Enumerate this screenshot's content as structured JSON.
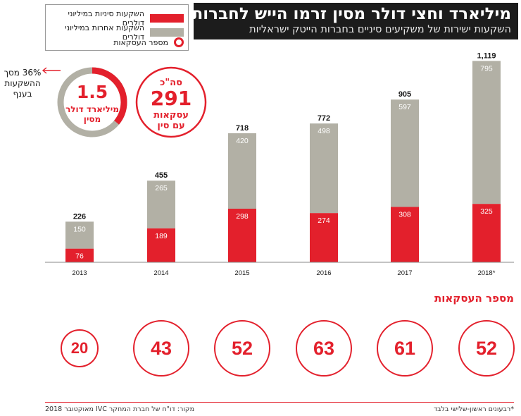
{
  "header": {
    "title": "מיליארד וחצי דולר מסין זרמו הייש לחברות",
    "subtitle": "השקעות ישירות של משקיעים סיניים בחברות הייטק ישראליות"
  },
  "legend": {
    "chinese": "השקעות סיניות במיליוני דולרים",
    "other": "השקעות אחרות במיליוני דולרים",
    "deals": "מספר העסקאות"
  },
  "summary": {
    "total_amount": "1.5",
    "total_amount_unit_line1": "מיליארד דולר",
    "total_amount_unit_line2": "מסין",
    "share_note_line1": "36% מסך",
    "share_note_line2": "ההשקעות",
    "share_note_line3": "בענף",
    "share_fraction": 0.36,
    "deals_prefix": "סה\"כ",
    "deals_total": "291",
    "deals_line1": "עסקאות",
    "deals_line2": "עם סין"
  },
  "colors": {
    "chinese": "#e3202c",
    "other": "#b2b0a5",
    "accent": "#e3202c",
    "title_bg": "#1c1c1c"
  },
  "chart_data": {
    "type": "bar",
    "stacked": true,
    "categories": [
      "2013",
      "2014",
      "2015",
      "2016",
      "2017",
      "2018*"
    ],
    "series": [
      {
        "name": "השקעות סיניות במיליוני דולרים",
        "values": [
          76,
          189,
          298,
          274,
          308,
          325
        ]
      },
      {
        "name": "השקעות אחרות במיליוני דולרים",
        "values": [
          150,
          265,
          420,
          498,
          597,
          795
        ]
      }
    ],
    "totals": [
      "226",
      "455",
      "718",
      "772",
      "905",
      "1,119"
    ],
    "deals": [
      20,
      43,
      52,
      63,
      61,
      52
    ],
    "ylim": [
      0,
      1119
    ]
  },
  "deals_section": {
    "title": "מספר העסקאות"
  },
  "footer": {
    "note": "*רבעונים ראשון-שלישי בלבד",
    "source": "מקור: דו\"ח של חברת המחקר IVC מאוקטובר 2018"
  }
}
